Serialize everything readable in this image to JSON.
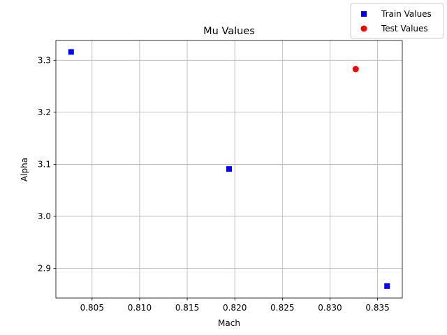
{
  "chart_data": {
    "type": "scatter",
    "title": "Mu Values",
    "xlabel": "Mach",
    "ylabel": "Alpha",
    "xlim": [
      0.8012,
      0.8376
    ],
    "ylim": [
      2.843,
      3.338
    ],
    "xticks": [
      0.805,
      0.81,
      0.815,
      0.82,
      0.825,
      0.83,
      0.835
    ],
    "xtick_labels": [
      "0.805",
      "0.810",
      "0.815",
      "0.820",
      "0.825",
      "0.830",
      "0.835"
    ],
    "yticks": [
      2.9,
      3.0,
      3.1,
      3.2,
      3.3
    ],
    "ytick_labels": [
      "2.9",
      "3.0",
      "3.1",
      "3.2",
      "3.3"
    ],
    "grid": true,
    "legend_position": "top-right",
    "series": [
      {
        "name": "Train Values",
        "marker": "square",
        "color": "#0000ff",
        "points": [
          {
            "x": 0.8028,
            "y": 3.316
          },
          {
            "x": 0.8194,
            "y": 3.091
          },
          {
            "x": 0.836,
            "y": 2.866
          }
        ]
      },
      {
        "name": "Test Values",
        "marker": "circle",
        "color": "#ff0000",
        "points": [
          {
            "x": 0.8327,
            "y": 3.283
          }
        ]
      }
    ]
  }
}
